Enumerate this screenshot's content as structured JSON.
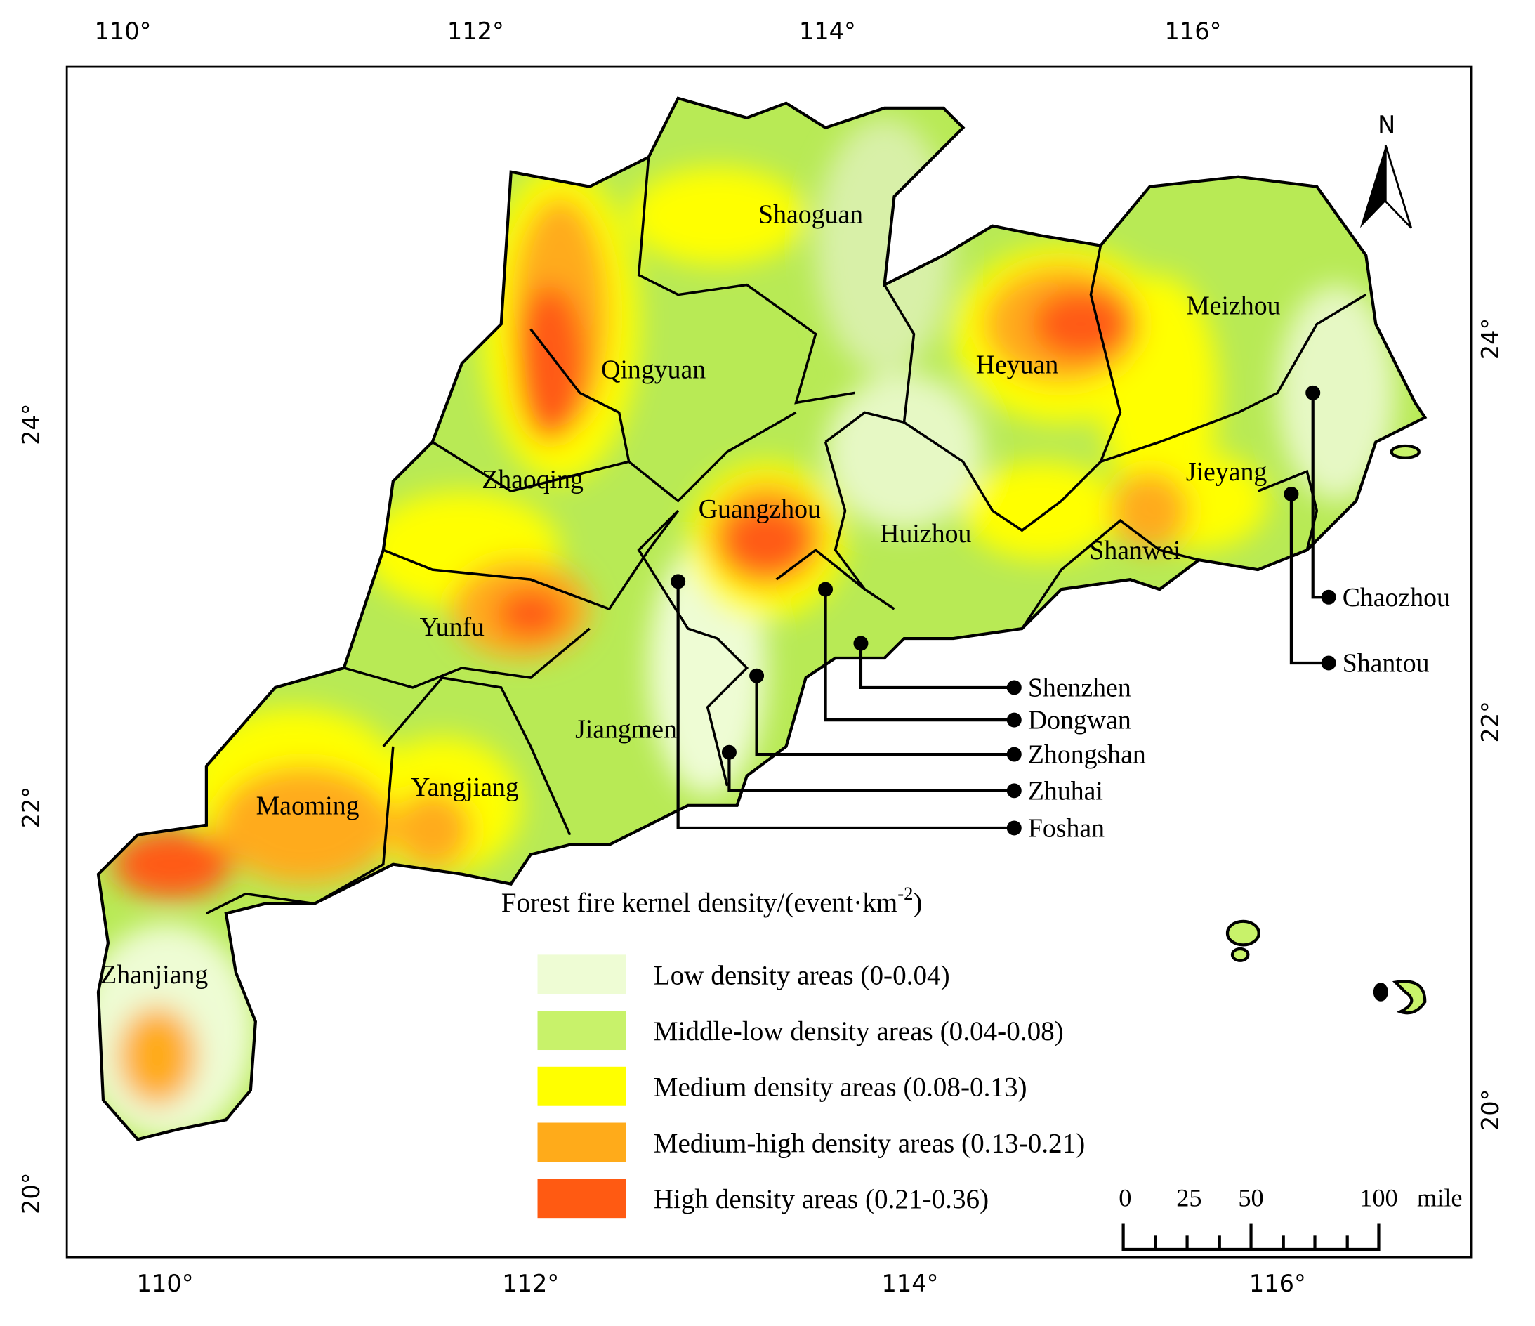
{
  "axes": {
    "top": [
      "110°",
      "112°",
      "114°",
      "116°"
    ],
    "bottom": [
      "110°",
      "112°",
      "114°",
      "116°"
    ],
    "left": [
      "24°",
      "22°",
      "20°"
    ],
    "right": [
      "24°",
      "22°",
      "20°"
    ]
  },
  "north": "N",
  "cities": [
    "Shaoguan",
    "Qingyuan",
    "Meizhou",
    "Heyuan",
    "Zhaoqing",
    "Guangzhou",
    "Huizhou",
    "Jieyang",
    "Shanwei",
    "Yunfu",
    "Jiangmen",
    "Maoming",
    "Yangjiang",
    "Zhanjiang"
  ],
  "callouts": [
    "Shenzhen",
    "Dongwan",
    "Zhongshan",
    "Zhuhai",
    "Foshan",
    "Chaozhou",
    "Shantou"
  ],
  "legend": {
    "title": "Forest fire kernel density/(event·km",
    "title_sup": "-2",
    "title_end": ")",
    "items": [
      {
        "label": "Low density areas (0-0.04)",
        "color": "#eefcd4"
      },
      {
        "label": "Middle-low density areas (0.04-0.08)",
        "color": "#c8f26a"
      },
      {
        "label": "Medium density areas (0.08-0.13)",
        "color": "#ffff00"
      },
      {
        "label": "Medium-high density areas (0.13-0.21)",
        "color": "#ffab1a"
      },
      {
        "label": "High density areas (0.21-0.36)",
        "color": "#ff5a12"
      }
    ]
  },
  "scale_bar": [
    "0",
    "25",
    "50",
    "100",
    "mile"
  ]
}
